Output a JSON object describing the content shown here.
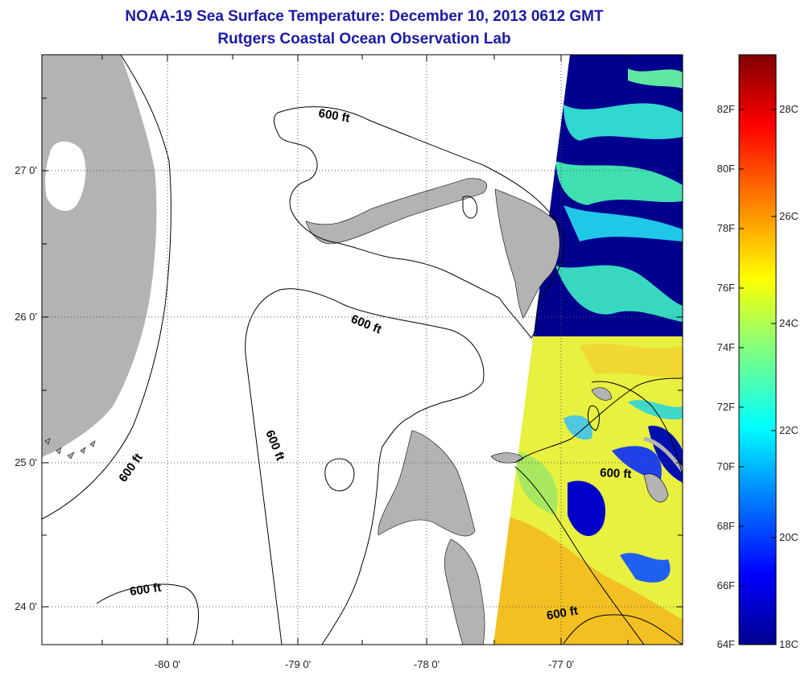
{
  "title": {
    "line1": "NOAA-19 Sea Surface Temperature:  December 10, 2013 0612 GMT",
    "line2": "Rutgers Coastal Ocean Observation Lab"
  },
  "map": {
    "lon_ticks": [
      "-80 0'",
      "-79 0'",
      "-78 0'",
      "-77 0'"
    ],
    "lat_ticks": [
      "27 0'",
      "26 0'",
      "25 0'",
      "24 0'"
    ],
    "contour_label": "600 ft",
    "land_color": "#b3b3b3",
    "frame_color": "#000000"
  },
  "colorbar": {
    "f_labels": [
      "82F",
      "80F",
      "78F",
      "76F",
      "74F",
      "72F",
      "70F",
      "68F",
      "66F",
      "64F"
    ],
    "c_labels": [
      "28C",
      "26C",
      "24C",
      "22C",
      "20C",
      "18C"
    ],
    "colors": [
      "#00008f",
      "#0000ff",
      "#0080ff",
      "#00ffff",
      "#80ff80",
      "#ffff00",
      "#ff8000",
      "#ff0000",
      "#800000"
    ]
  }
}
